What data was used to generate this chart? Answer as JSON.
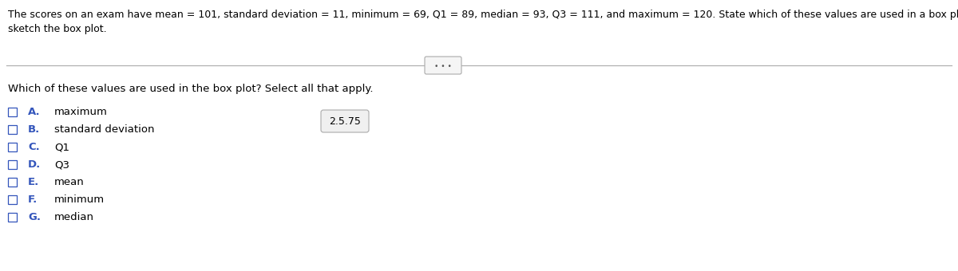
{
  "title_text": "The scores on an exam have mean = 101, standard deviation = 11, minimum = 69, Q1 = 89, median = 93, Q3 = 111, and maximum = 120. State which of these values are used in a box plot and then",
  "title_line2": "sketch the box plot.",
  "question_text": "Which of these values are used in the box plot? Select all that apply.",
  "options": [
    {
      "letter": "A.",
      "text": "maximum"
    },
    {
      "letter": "B.",
      "text": "standard deviation"
    },
    {
      "letter": "C.",
      "text": "Q1"
    },
    {
      "letter": "D.",
      "text": "Q3"
    },
    {
      "letter": "E.",
      "text": "mean"
    },
    {
      "letter": "F.",
      "text": "minimum"
    },
    {
      "letter": "G.",
      "text": "median"
    }
  ],
  "badge_text": "2.5.75",
  "bg_color": "#ffffff",
  "text_color": "#000000",
  "letter_color": "#3355bb",
  "checkbox_color": "#3355bb",
  "font_size_title": 9.0,
  "font_size_body": 9.5,
  "font_size_badge": 9.0
}
